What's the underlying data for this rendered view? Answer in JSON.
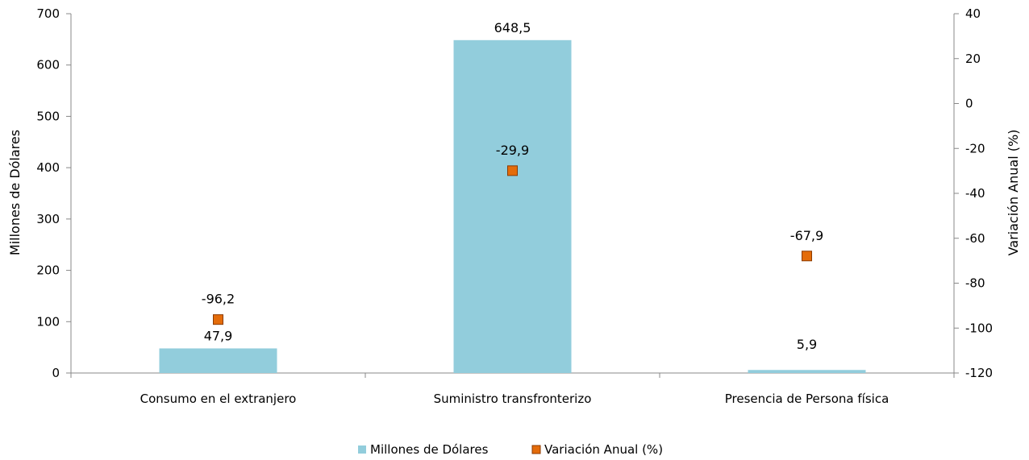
{
  "chart_data": {
    "type": "bar",
    "categories": [
      "Consumo en el extranjero",
      "Suministro transfronterizo",
      "Presencia de Persona física"
    ],
    "series": [
      {
        "name": "Millones de Dólares",
        "type": "bar",
        "axis": "left",
        "values": [
          47.9,
          648.5,
          5.9
        ],
        "labels": [
          "47,9",
          "648,5",
          "5,9"
        ],
        "color": "#92CDDC"
      },
      {
        "name": "Variación Anual (%)",
        "type": "marker",
        "axis": "right",
        "values": [
          -96.2,
          -29.9,
          -67.9
        ],
        "labels": [
          "-96,2",
          "-29,9",
          "-67,9"
        ],
        "color": "#E46C0A",
        "stroke": "#8B3A00"
      }
    ],
    "y_left": {
      "label": "Millones de Dólares",
      "lim": [
        0,
        700
      ],
      "ticks": [
        0,
        100,
        200,
        300,
        400,
        500,
        600,
        700
      ]
    },
    "y_right": {
      "label": "Variación Anual (%)",
      "lim": [
        -120,
        40
      ],
      "ticks": [
        -120,
        -100,
        -80,
        -60,
        -40,
        -20,
        0,
        20,
        40
      ]
    },
    "grid": false,
    "legend_position": "bottom-center"
  }
}
